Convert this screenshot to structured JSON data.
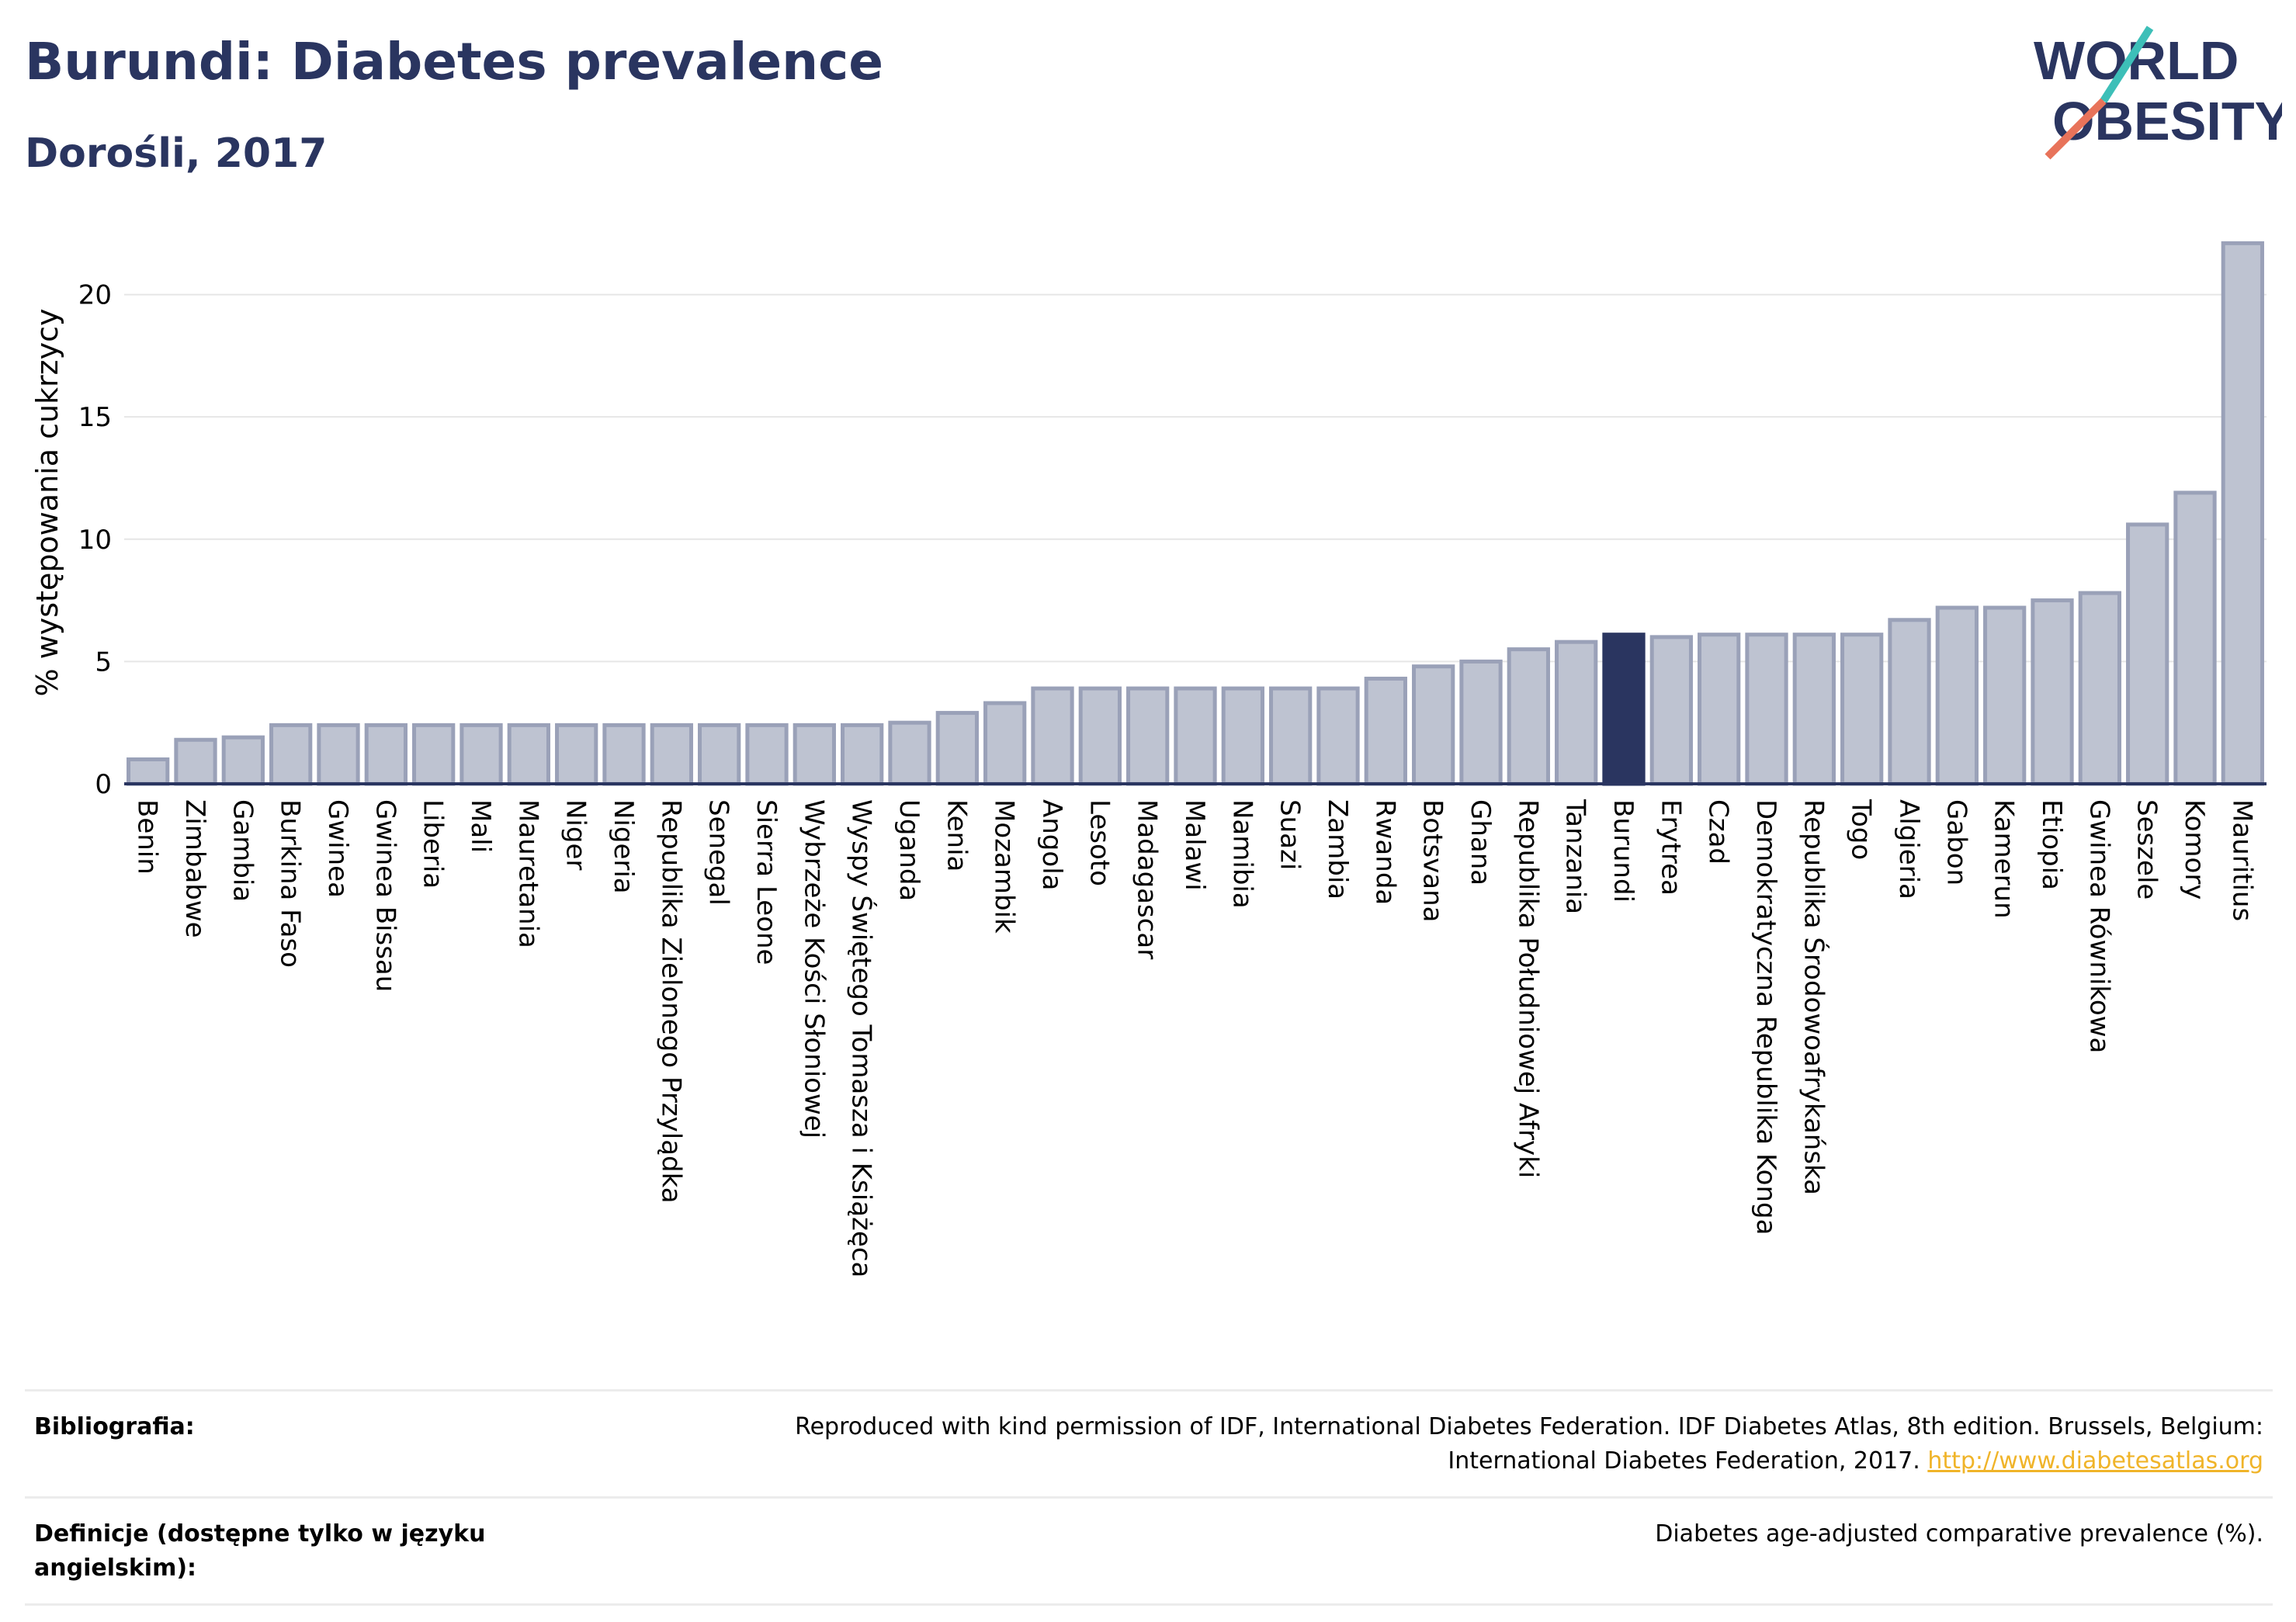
{
  "header": {
    "title": "Burundi: Diabetes prevalence",
    "subtitle": "Dorośli, 2017"
  },
  "logo": {
    "line1": "WORLD",
    "line2": "OBESITY",
    "colors": {
      "text": "#2a3560",
      "slash_teal": "#3dbfb8",
      "slash_red": "#e8735a"
    }
  },
  "colors": {
    "bar": "#bec3d1",
    "bar_stroke": "#9aa1b8",
    "highlight": "#2a3560",
    "grid": "#e6e6e6",
    "axis": "#2a3560"
  },
  "chart_data": {
    "type": "bar",
    "ylabel": "% występowania cukrzycy",
    "ylim": [
      0,
      23
    ],
    "yticks": [
      0,
      5,
      10,
      15,
      20
    ],
    "grid": true,
    "highlight": "Burundi",
    "categories": [
      "Benin",
      "Zimbabwe",
      "Gambia",
      "Burkina Faso",
      "Gwinea",
      "Gwinea Bissau",
      "Liberia",
      "Mali",
      "Mauretania",
      "Niger",
      "Nigeria",
      "Republika Zielonego Przylądka",
      "Senegal",
      "Sierra Leone",
      "Wybrzeże Kości Słoniowej",
      "Wyspy Świętego Tomasza i Książęca",
      "Uganda",
      "Kenia",
      "Mozambik",
      "Angola",
      "Lesoto",
      "Madagascar",
      "Malawi",
      "Namibia",
      "Suazi",
      "Zambia",
      "Rwanda",
      "Botsvana",
      "Ghana",
      "Republika Południowej Afryki",
      "Tanzania",
      "Burundi",
      "Erytrea",
      "Czad",
      "Demokratyczna Republika Konga",
      "Republika Środowoafrykańska",
      "Togo",
      "Algieria",
      "Gabon",
      "Kamerun",
      "Etiopia",
      "Gwinea Równikowa",
      "Seszele",
      "Komory",
      "Mauritius"
    ],
    "values": [
      1.0,
      1.8,
      1.9,
      2.4,
      2.4,
      2.4,
      2.4,
      2.4,
      2.4,
      2.4,
      2.4,
      2.4,
      2.4,
      2.4,
      2.4,
      2.4,
      2.5,
      2.9,
      3.3,
      3.9,
      3.9,
      3.9,
      3.9,
      3.9,
      3.9,
      3.9,
      4.3,
      4.8,
      5.0,
      5.5,
      5.8,
      6.1,
      6.0,
      6.1,
      6.1,
      6.1,
      6.1,
      6.7,
      7.2,
      7.2,
      7.5,
      7.8,
      10.6,
      11.9,
      22.1
    ]
  },
  "footer": {
    "rows": [
      {
        "label": "Bibliografia:",
        "text_line1": "Reproduced with kind permission of IDF, International Diabetes Federation. IDF Diabetes Atlas, 8th edition. Brussels, Belgium:",
        "text_line2": "International Diabetes Federation, 2017.",
        "link": "http://www.diabetesatlas.org"
      },
      {
        "label": "Definicje (dostępne tylko w języku angielskim):",
        "text": "Diabetes age-adjusted comparative prevalence (%)."
      }
    ]
  }
}
